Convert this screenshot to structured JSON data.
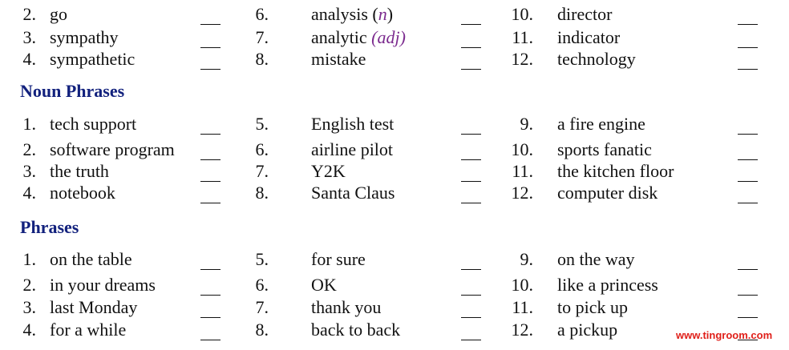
{
  "sections": [
    {
      "columns": [
        {
          "items": [
            {
              "num": "2.",
              "text": "go"
            },
            {
              "num": "3.",
              "text": "sympathy"
            },
            {
              "num": "4.",
              "text": "sympathetic"
            }
          ]
        },
        {
          "items": [
            {
              "num": "6.",
              "text": "analysis (",
              "note": "n",
              "tail": ")"
            },
            {
              "num": "7.",
              "text": "analytic ",
              "note": "(adj)"
            },
            {
              "num": "8.",
              "text": "mistake"
            }
          ]
        },
        {
          "items": [
            {
              "num": "10.",
              "text": "director"
            },
            {
              "num": "11.",
              "text": "indicator"
            },
            {
              "num": "12.",
              "text": "technology"
            }
          ]
        }
      ]
    },
    {
      "heading": "Noun Phrases",
      "columns": [
        {
          "items": [
            {
              "num": "1.",
              "text": "tech support"
            },
            {
              "num": "2.",
              "text": "software program"
            },
            {
              "num": "3.",
              "text": "the truth"
            },
            {
              "num": "4.",
              "text": "notebook"
            }
          ]
        },
        {
          "items": [
            {
              "num": "5.",
              "text": "English test"
            },
            {
              "num": "6.",
              "text": "airline pilot"
            },
            {
              "num": "7.",
              "text": "Y2K"
            },
            {
              "num": "8.",
              "text": "Santa Claus"
            }
          ]
        },
        {
          "items": [
            {
              "num": "9.",
              "text": "a fire engine"
            },
            {
              "num": "10.",
              "text": "sports fanatic"
            },
            {
              "num": "11.",
              "text": "the kitchen floor"
            },
            {
              "num": "12.",
              "text": "computer disk"
            }
          ]
        }
      ]
    },
    {
      "heading": "Phrases",
      "columns": [
        {
          "items": [
            {
              "num": "1.",
              "text": "on the table"
            },
            {
              "num": "2.",
              "text": "in your dreams"
            },
            {
              "num": "3.",
              "text": "last Monday"
            },
            {
              "num": "4.",
              "text": "for a while"
            }
          ]
        },
        {
          "items": [
            {
              "num": "5.",
              "text": "for sure"
            },
            {
              "num": "6.",
              "text": "OK"
            },
            {
              "num": "7.",
              "text": "thank you"
            },
            {
              "num": "8.",
              "text": "back to back"
            }
          ]
        },
        {
          "items": [
            {
              "num": "9.",
              "text": "on the way"
            },
            {
              "num": "10.",
              "text": "like a princess"
            },
            {
              "num": "11.",
              "text": "to pick up"
            },
            {
              "num": "12.",
              "text": "a pickup"
            }
          ]
        }
      ]
    }
  ],
  "watermark": "www.tingroom.com"
}
